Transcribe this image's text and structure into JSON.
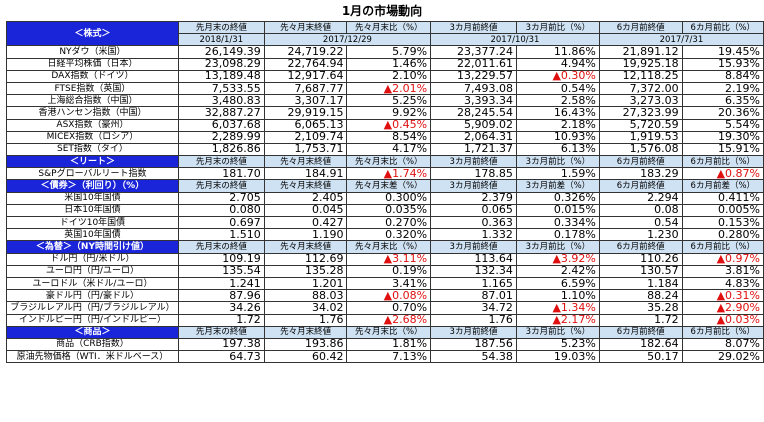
{
  "title": "1月の市場動向",
  "colors": {
    "section_header": "#1a24d8",
    "column_header": "#cfe2f3",
    "negative": "#e01010"
  },
  "header": {
    "row1": [
      "先月末の終値",
      "先々月末終値",
      "先々月末比（%）",
      "3カ月前終値",
      "3カ月前比（%）",
      "6カ月前終値",
      "6カ月前比（%）"
    ],
    "dates": [
      "2018/1/31",
      "2017/12/29",
      "2017/10/31",
      "2017/7/31"
    ]
  },
  "sections": [
    {
      "title": "＜株式＞",
      "subheader": null,
      "rows": [
        {
          "label": "NYダウ（米国）",
          "values": [
            "26,149.39",
            "24,719.22",
            "5.79%",
            "23,377.24",
            "11.86%",
            "21,891.12",
            "19.45%"
          ],
          "neg": []
        },
        {
          "label": "日経平均株価（日本）",
          "values": [
            "23,098.29",
            "22,764.94",
            "1.46%",
            "22,011.61",
            "4.94%",
            "19,925.18",
            "15.93%"
          ],
          "neg": []
        },
        {
          "label": "DAX指数（ドイツ）",
          "values": [
            "13,189.48",
            "12,917.64",
            "2.10%",
            "13,229.57",
            "▲0.30%",
            "12,118.25",
            "8.84%"
          ],
          "neg": [
            4
          ]
        },
        {
          "label": "FTSE指数（英国）",
          "values": [
            "7,533.55",
            "7,687.77",
            "▲2.01%",
            "7,493.08",
            "0.54%",
            "7,372.00",
            "2.19%"
          ],
          "neg": [
            2
          ]
        },
        {
          "label": "上海総合指数（中国）",
          "values": [
            "3,480.83",
            "3,307.17",
            "5.25%",
            "3,393.34",
            "2.58%",
            "3,273.03",
            "6.35%"
          ],
          "neg": []
        },
        {
          "label": "香港ハンセン指数（中国）",
          "values": [
            "32,887.27",
            "29,919.15",
            "9.92%",
            "28,245.54",
            "16.43%",
            "27,323.99",
            "20.36%"
          ],
          "neg": []
        },
        {
          "label": "ASX指数（豪州）",
          "values": [
            "6,037.68",
            "6,065.13",
            "▲0.45%",
            "5,909.02",
            "2.18%",
            "5,720.59",
            "5.54%"
          ],
          "neg": [
            2
          ]
        },
        {
          "label": "MICEX指数（ロシア）",
          "values": [
            "2,289.99",
            "2,109.74",
            "8.54%",
            "2,064.31",
            "10.93%",
            "1,919.53",
            "19.30%"
          ],
          "neg": []
        },
        {
          "label": "SET指数（タイ）",
          "values": [
            "1,826.86",
            "1,753.71",
            "4.17%",
            "1,721.37",
            "6.13%",
            "1,576.08",
            "15.91%"
          ],
          "neg": []
        }
      ]
    },
    {
      "title": "＜リート＞",
      "subheader": [
        "先月末の終値",
        "先々月末終値",
        "先々月末比（%）",
        "3カ月前終値",
        "3カ月前比（%）",
        "6カ月前終値",
        "6カ月前比（%）"
      ],
      "rows": [
        {
          "label": "S&Pグローバルリート指数",
          "values": [
            "181.70",
            "184.91",
            "▲1.74%",
            "178.85",
            "1.59%",
            "183.29",
            "▲0.87%"
          ],
          "neg": [
            2,
            6
          ]
        }
      ]
    },
    {
      "title": "＜債券＞（利回り）（%）",
      "subheader": [
        "先月末の終値",
        "先々月末終値",
        "先々月末差（%）",
        "3カ月前終値",
        "3カ月前差（%）",
        "6カ月前終値",
        "6カ月前差（%）"
      ],
      "rows": [
        {
          "label": "米国10年国債",
          "values": [
            "2.705",
            "2.405",
            "0.300%",
            "2.379",
            "0.326%",
            "2.294",
            "0.411%"
          ],
          "neg": []
        },
        {
          "label": "日本10年国債",
          "values": [
            "0.080",
            "0.045",
            "0.035%",
            "0.065",
            "0.015%",
            "0.08",
            "0.005%"
          ],
          "neg": []
        },
        {
          "label": "ドイツ10年国債",
          "values": [
            "0.697",
            "0.427",
            "0.270%",
            "0.363",
            "0.334%",
            "0.54",
            "0.153%"
          ],
          "neg": []
        },
        {
          "label": "英国10年国債",
          "values": [
            "1.510",
            "1.190",
            "0.320%",
            "1.332",
            "0.178%",
            "1.230",
            "0.280%"
          ],
          "neg": []
        }
      ]
    },
    {
      "title": "＜為替＞（NY時間引け値）",
      "subheader": [
        "先月末の終値",
        "先々月末終値",
        "先々月末比（%）",
        "3カ月前終値",
        "3カ月前比（%）",
        "6カ月前終値",
        "6カ月前比（%）"
      ],
      "rows": [
        {
          "label": "ドル円（円/米ドル）",
          "values": [
            "109.19",
            "112.69",
            "▲3.11%",
            "113.64",
            "▲3.92%",
            "110.26",
            "▲0.97%"
          ],
          "neg": [
            2,
            4,
            6
          ]
        },
        {
          "label": "ユーロ円（円/ユーロ）",
          "values": [
            "135.54",
            "135.28",
            "0.19%",
            "132.34",
            "2.42%",
            "130.57",
            "3.81%"
          ],
          "neg": []
        },
        {
          "label": "ユーロドル（米ドル/ユーロ）",
          "values": [
            "1.241",
            "1.201",
            "3.41%",
            "1.165",
            "6.59%",
            "1.184",
            "4.83%"
          ],
          "neg": []
        },
        {
          "label": "豪ドル円（円/豪ドル）",
          "values": [
            "87.96",
            "88.03",
            "▲0.08%",
            "87.01",
            "1.10%",
            "88.24",
            "▲0.31%"
          ],
          "neg": [
            2,
            6
          ]
        },
        {
          "label": "ブラジルレアル円（円/ブラジルレアル）",
          "values": [
            "34.26",
            "34.02",
            "0.70%",
            "34.72",
            "▲1.34%",
            "35.28",
            "▲2.90%"
          ],
          "neg": [
            4,
            6
          ]
        },
        {
          "label": "インドルピー円（円/インドルピー）",
          "values": [
            "1.72",
            "1.76",
            "▲2.68%",
            "1.76",
            "▲2.17%",
            "1.72",
            "▲0.03%"
          ],
          "neg": [
            2,
            4,
            6
          ]
        }
      ]
    },
    {
      "title": "＜商品＞",
      "subheader": [
        "先月末の終値",
        "先々月末終値",
        "先々月末比（%）",
        "3カ月前終値",
        "3カ月前比（%）",
        "6カ月前終値",
        "6カ月前比（%）"
      ],
      "rows": [
        {
          "label": "商品（CRB指数）",
          "values": [
            "197.38",
            "193.86",
            "1.81%",
            "187.56",
            "5.23%",
            "182.64",
            "8.07%"
          ],
          "neg": []
        },
        {
          "label": "原油先物価格（WTI．米ドルベース）",
          "values": [
            "64.73",
            "60.42",
            "7.13%",
            "54.38",
            "19.03%",
            "50.17",
            "29.02%"
          ],
          "neg": []
        }
      ]
    }
  ]
}
